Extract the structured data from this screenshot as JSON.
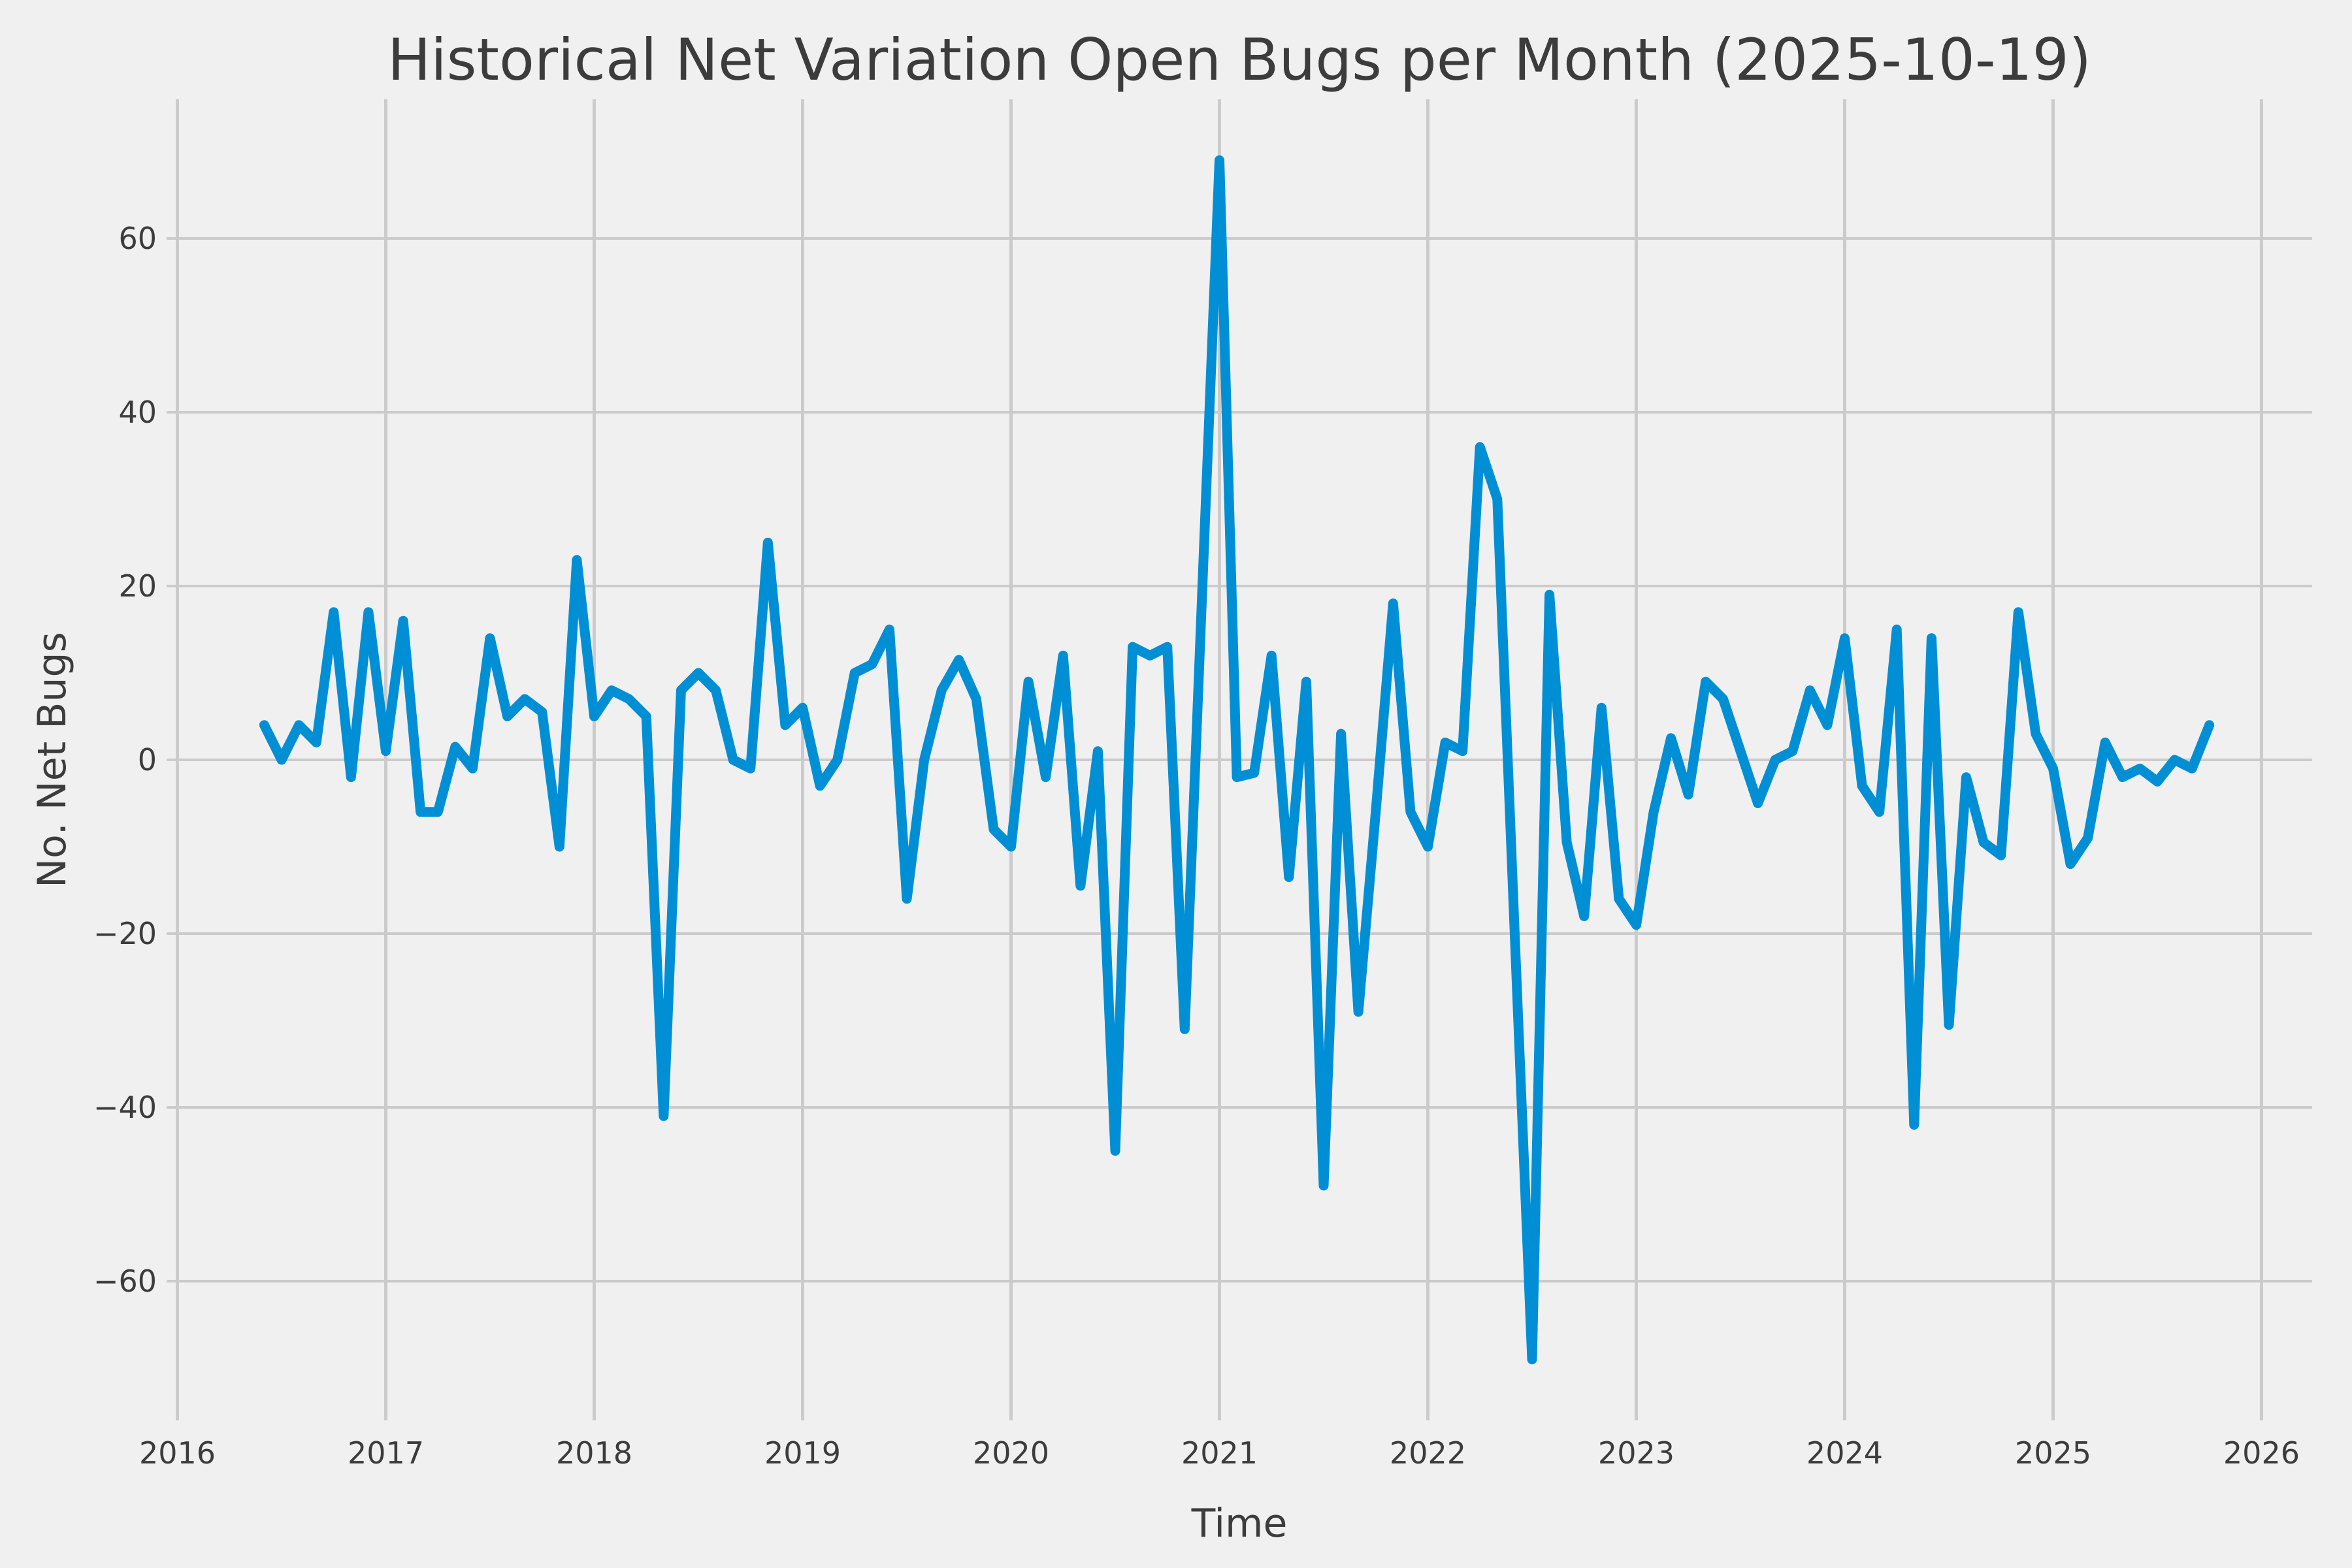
{
  "figure": {
    "background_color": "#f0f0f0",
    "grid_color": "#cbcbcb",
    "text_color": "#3c3c3c"
  },
  "chart_data": {
    "type": "line",
    "title": "Historical Net Variation Open Bugs per Month (2025-10-19)",
    "xlabel": "Time",
    "ylabel": "No. Net Bugs",
    "line_color": "#008fd5",
    "grid": true,
    "legend_position": "none",
    "x_tick_labels": [
      "2016",
      "2017",
      "2018",
      "2019",
      "2020",
      "2021",
      "2022",
      "2023",
      "2024",
      "2025",
      "2026"
    ],
    "y_ticks": [
      -60,
      -40,
      -20,
      0,
      20,
      40,
      60
    ],
    "ylim": [
      -76,
      76
    ],
    "xlim_years": [
      2015.95,
      2026.22
    ],
    "start_month": "2016-06",
    "end_month": "2025-10",
    "months": [
      "2016-06",
      "2016-07",
      "2016-08",
      "2016-09",
      "2016-10",
      "2016-11",
      "2016-12",
      "2017-01",
      "2017-02",
      "2017-03",
      "2017-04",
      "2017-05",
      "2017-06",
      "2017-07",
      "2017-08",
      "2017-09",
      "2017-10",
      "2017-11",
      "2017-12",
      "2018-01",
      "2018-02",
      "2018-03",
      "2018-04",
      "2018-05",
      "2018-06",
      "2018-07",
      "2018-08",
      "2018-09",
      "2018-10",
      "2018-11",
      "2018-12",
      "2019-01",
      "2019-02",
      "2019-03",
      "2019-04",
      "2019-05",
      "2019-06",
      "2019-07",
      "2019-08",
      "2019-09",
      "2019-10",
      "2019-11",
      "2019-12",
      "2020-01",
      "2020-02",
      "2020-03",
      "2020-04",
      "2020-05",
      "2020-06",
      "2020-07",
      "2020-08",
      "2020-09",
      "2020-10",
      "2020-11",
      "2020-12",
      "2021-01",
      "2021-02",
      "2021-03",
      "2021-04",
      "2021-05",
      "2021-06",
      "2021-07",
      "2021-08",
      "2021-09",
      "2021-10",
      "2021-11",
      "2021-12",
      "2022-01",
      "2022-02",
      "2022-03",
      "2022-04",
      "2022-05",
      "2022-06",
      "2022-07",
      "2022-08",
      "2022-09",
      "2022-10",
      "2022-11",
      "2022-12",
      "2023-01",
      "2023-02",
      "2023-03",
      "2023-04",
      "2023-05",
      "2023-06",
      "2023-07",
      "2023-08",
      "2023-09",
      "2023-10",
      "2023-11",
      "2023-12",
      "2024-01",
      "2024-02",
      "2024-03",
      "2024-04",
      "2024-05",
      "2024-06",
      "2024-07",
      "2024-08",
      "2024-09",
      "2024-10",
      "2024-11",
      "2024-12",
      "2025-01",
      "2025-02",
      "2025-03",
      "2025-04",
      "2025-05",
      "2025-06",
      "2025-07",
      "2025-08",
      "2025-09",
      "2025-10"
    ],
    "values": [
      4,
      0,
      4,
      2,
      17,
      -2,
      17,
      1,
      16,
      -6,
      -6,
      1.5,
      -1,
      14,
      5,
      7,
      5.5,
      -10,
      23,
      5,
      8,
      7,
      5,
      -41,
      8,
      10,
      8,
      0,
      -1,
      25,
      4,
      6,
      -3,
      0,
      10,
      11,
      15,
      -16,
      0,
      8,
      11.5,
      7,
      -8,
      -10,
      9,
      -2,
      12,
      -14.5,
      1,
      -45,
      13,
      12,
      13,
      -31,
      19,
      69,
      -2,
      -1.5,
      12,
      -13.5,
      9,
      -49,
      3,
      -29,
      -6,
      18,
      -6,
      -10,
      2,
      1,
      36,
      30,
      -20,
      -69,
      19,
      -9.5,
      -18,
      6,
      -16,
      -19,
      -6,
      2.5,
      -4,
      9,
      7,
      1,
      -5,
      0,
      1,
      8,
      4,
      14,
      -3,
      -6,
      15,
      -42,
      14,
      -30.5,
      -2,
      -9.5,
      -11,
      17,
      3,
      -1,
      -12,
      -9,
      2,
      -2,
      -1,
      -2.5,
      0,
      -1,
      4
    ]
  }
}
